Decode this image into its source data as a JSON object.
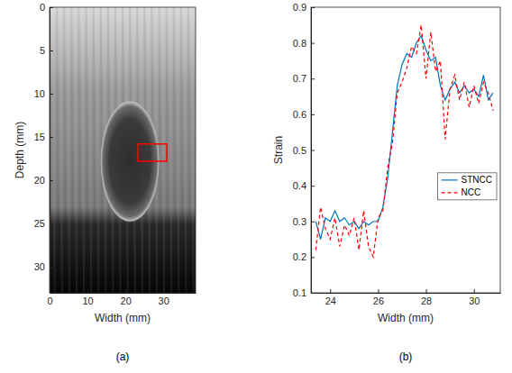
{
  "chart_data": [
    {
      "type": "image",
      "caption": "(a)",
      "xlabel": "Width (mm)",
      "ylabel": "Depth (mm)",
      "xlim": [
        0,
        38.5
      ],
      "ylim": [
        0,
        33
      ],
      "xticks": [
        0,
        10,
        20,
        30
      ],
      "yticks": [
        0,
        5,
        10,
        15,
        20,
        25,
        30
      ],
      "roi": {
        "x": [
          23.3,
          30.9
        ],
        "y": [
          15.8,
          17.8
        ],
        "color": "#ff0000"
      }
    },
    {
      "type": "line",
      "caption": "(b)",
      "xlabel": "Width (mm)",
      "ylabel": "Strain",
      "xlim": [
        23.2,
        31.1
      ],
      "ylim": [
        0.1,
        0.9
      ],
      "xticks": [
        24,
        26,
        28,
        30
      ],
      "yticks": [
        0.1,
        0.2,
        0.3,
        0.4,
        0.5,
        0.6,
        0.7,
        0.8,
        0.9
      ],
      "legend": "right",
      "x": [
        23.4,
        23.6,
        23.8,
        24.0,
        24.2,
        24.4,
        24.6,
        24.8,
        25.0,
        25.2,
        25.4,
        25.6,
        25.8,
        26.0,
        26.2,
        26.4,
        26.6,
        26.8,
        27.0,
        27.2,
        27.4,
        27.6,
        27.8,
        28.0,
        28.2,
        28.4,
        28.6,
        28.8,
        29.0,
        29.2,
        29.4,
        29.6,
        29.8,
        30.0,
        30.2,
        30.4,
        30.6,
        30.8
      ],
      "series": [
        {
          "name": "STNCC",
          "color": "#0072bd",
          "line_style": "solid",
          "values": [
            0.3,
            0.25,
            0.31,
            0.3,
            0.33,
            0.3,
            0.31,
            0.29,
            0.3,
            0.28,
            0.3,
            0.29,
            0.3,
            0.3,
            0.34,
            0.42,
            0.55,
            0.68,
            0.74,
            0.77,
            0.76,
            0.8,
            0.82,
            0.78,
            0.75,
            0.76,
            0.68,
            0.64,
            0.67,
            0.69,
            0.66,
            0.68,
            0.66,
            0.67,
            0.65,
            0.71,
            0.64,
            0.66
          ]
        },
        {
          "name": "NCC",
          "color": "#ff0000",
          "line_style": "dashed",
          "values": [
            0.22,
            0.34,
            0.28,
            0.25,
            0.31,
            0.23,
            0.29,
            0.26,
            0.31,
            0.22,
            0.33,
            0.23,
            0.2,
            0.31,
            0.33,
            0.45,
            0.52,
            0.66,
            0.69,
            0.73,
            0.79,
            0.77,
            0.85,
            0.7,
            0.83,
            0.72,
            0.75,
            0.53,
            0.67,
            0.71,
            0.64,
            0.69,
            0.62,
            0.68,
            0.63,
            0.69,
            0.66,
            0.61
          ]
        }
      ]
    }
  ]
}
